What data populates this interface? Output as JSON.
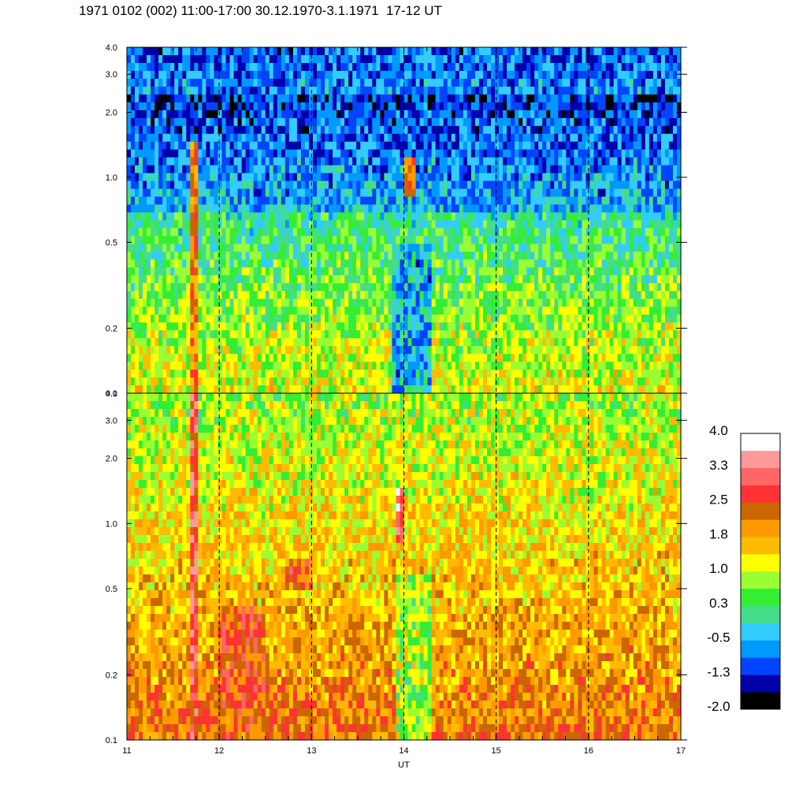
{
  "title": "1971 0102 (002) 11:00-17:00 30.12.1970-3.1.1971  17-12 UT",
  "chart_data": {
    "type": "heatmap",
    "title": "1971 0102 (002) 11:00-17:00 30.12.1970-3.1.1971  17-12 UT",
    "xlabel": "UT",
    "x_range": [
      11,
      17
    ],
    "x_ticks": [
      11,
      12,
      13,
      14,
      15,
      16,
      17
    ],
    "x_tick_labels": [
      "11",
      "12",
      "13",
      "14",
      "15",
      "16",
      "17"
    ],
    "x_scale": "linear",
    "y_scale": "log",
    "y_range": [
      0.1,
      4.0
    ],
    "y_ticks": [
      0.1,
      0.2,
      0.5,
      1.0,
      2.0,
      3.0,
      4.0
    ],
    "y_tick_labels": [
      "0.1",
      "0.2",
      "0.5",
      "1.0",
      "2.0",
      "3.0",
      "4.0"
    ],
    "dashed_verticals_at": [
      12,
      13,
      14,
      15,
      16
    ],
    "panels": [
      {
        "name": "upper",
        "dominant_levels": "-1.3 to 1.0",
        "features": [
          "enhancement near 14 UT at 1.0",
          "low values (blue) around 14 UT below 0.3"
        ]
      },
      {
        "name": "lower",
        "dominant_levels": "1.0 to 2.5",
        "features": [
          "high values near 14 UT around 1.0",
          "elevated band near 11.7 UT at low y"
        ]
      }
    ],
    "colorbar": {
      "labels": [
        "4.0",
        "3.3",
        "2.5",
        "1.8",
        "1.0",
        "0.3",
        "-0.5",
        "-1.3",
        "-2.0"
      ],
      "range": [
        -2.0,
        4.0
      ],
      "colors": [
        "#000000",
        "#0000aa",
        "#0044ff",
        "#0099ff",
        "#33ccff",
        "#44dd88",
        "#33ee33",
        "#99ff33",
        "#ffff00",
        "#ffbb00",
        "#ff9900",
        "#cc6600",
        "#ff3333",
        "#ff6666",
        "#ff9999",
        "#ffffff"
      ]
    }
  }
}
